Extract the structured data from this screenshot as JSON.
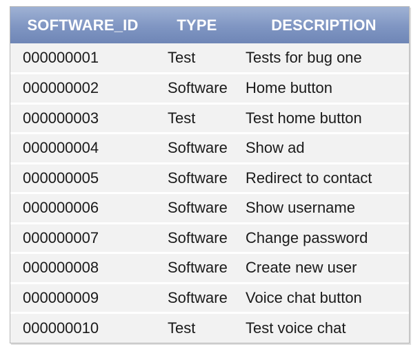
{
  "table": {
    "headers": [
      "SOFTWARE_ID",
      "TYPE",
      "DESCRIPTION"
    ],
    "rows": [
      [
        "000000001",
        "Test",
        "Tests for bug one"
      ],
      [
        "000000002",
        "Software",
        "Home button"
      ],
      [
        "000000003",
        "Test",
        "Test home button"
      ],
      [
        "000000004",
        "Software",
        "Show ad"
      ],
      [
        "000000005",
        "Software",
        "Redirect to contact"
      ],
      [
        "000000006",
        "Software",
        "Show username"
      ],
      [
        "000000007",
        "Software",
        "Change password"
      ],
      [
        "000000008",
        "Software",
        "Create new user"
      ],
      [
        "000000009",
        "Software",
        "Voice chat button"
      ],
      [
        "000000010",
        "Test",
        "Test voice chat"
      ]
    ]
  },
  "colors": {
    "header_bg": "#7f95c2",
    "row_bg": "#f2f2f2",
    "header_text": "#ffffff"
  }
}
